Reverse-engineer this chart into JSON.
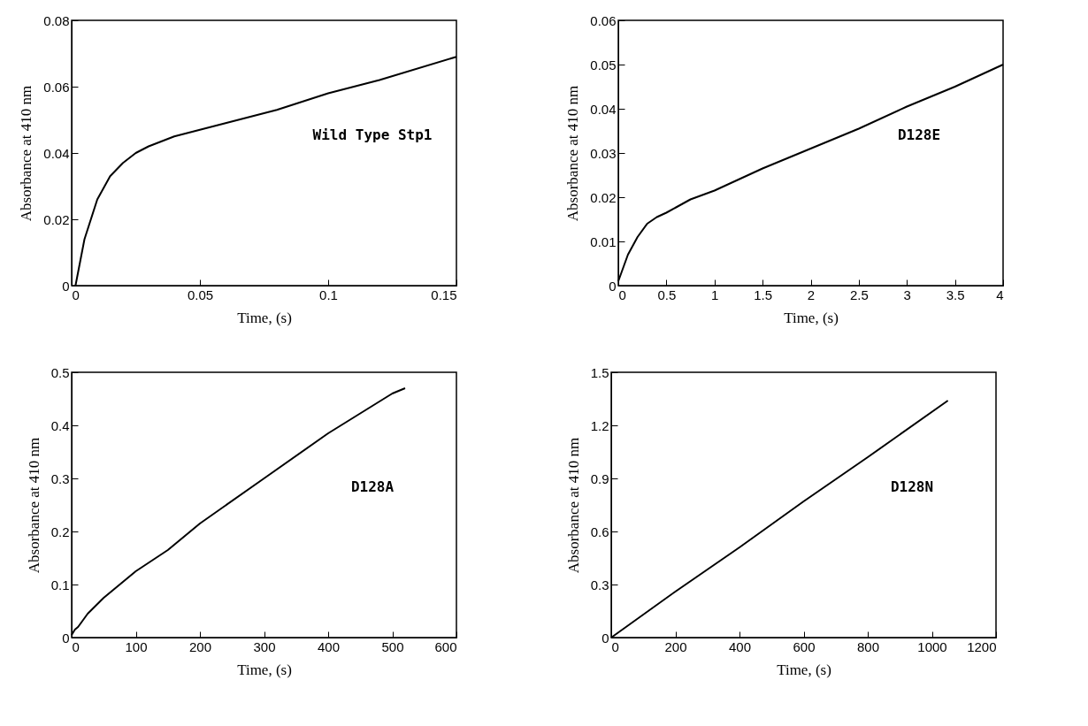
{
  "chart_data": [
    {
      "type": "line",
      "xlabel": "Time, (s)",
      "ylabel": "Absorbance at 410 nm",
      "annotations": [
        "Wild Type Stp1"
      ],
      "xlim": [
        0,
        0.15
      ],
      "xticks": [
        0,
        0.05,
        0.1,
        0.15
      ],
      "ylim": [
        0,
        0.08
      ],
      "yticks": [
        0,
        0.02,
        0.04,
        0.06,
        0.08
      ],
      "grid": false,
      "series": [
        {
          "color": "#000000",
          "x": [
            0.0015,
            0.005,
            0.01,
            0.015,
            0.02,
            0.025,
            0.03,
            0.04,
            0.05,
            0.06,
            0.08,
            0.1,
            0.12,
            0.15
          ],
          "values": [
            0,
            0.014,
            0.026,
            0.033,
            0.037,
            0.04,
            0.042,
            0.045,
            0.047,
            0.049,
            0.053,
            0.058,
            0.062,
            0.069
          ]
        }
      ]
    },
    {
      "type": "line",
      "xlabel": "Time, (s)",
      "ylabel": "Absorbance at 410 nm",
      "annotations": [
        "D128E"
      ],
      "xlim": [
        0,
        4
      ],
      "xticks": [
        0,
        0.5,
        1,
        1.5,
        2,
        2.5,
        3,
        3.5,
        4
      ],
      "ylim": [
        0,
        0.06
      ],
      "yticks": [
        0,
        0.01,
        0.02,
        0.03,
        0.04,
        0.05,
        0.06
      ],
      "grid": false,
      "series": [
        {
          "color": "#000000",
          "x": [
            0,
            0.05,
            0.1,
            0.2,
            0.3,
            0.4,
            0.5,
            0.75,
            1,
            1.5,
            2,
            2.5,
            3,
            3.5,
            4
          ],
          "values": [
            0.001,
            0.004,
            0.007,
            0.011,
            0.014,
            0.0155,
            0.0165,
            0.0195,
            0.0215,
            0.0265,
            0.031,
            0.0355,
            0.0405,
            0.045,
            0.05
          ]
        }
      ]
    },
    {
      "type": "line",
      "xlabel": "Time, (s)",
      "ylabel": "Absorbance at 410 nm",
      "annotations": [
        "D128A"
      ],
      "xlim": [
        0,
        600
      ],
      "xticks": [
        0,
        100,
        200,
        300,
        400,
        500,
        600
      ],
      "ylim": [
        0,
        0.5
      ],
      "yticks": [
        0,
        0.1,
        0.2,
        0.3,
        0.4,
        0.5
      ],
      "grid": false,
      "series": [
        {
          "color": "#000000",
          "x": [
            0,
            5,
            10,
            25,
            50,
            75,
            100,
            150,
            200,
            300,
            400,
            500,
            520
          ],
          "values": [
            0.005,
            0.015,
            0.02,
            0.045,
            0.075,
            0.1,
            0.125,
            0.165,
            0.215,
            0.3,
            0.385,
            0.46,
            0.47
          ]
        }
      ]
    },
    {
      "type": "line",
      "xlabel": "Time, (s)",
      "ylabel": "Absorbance at 410 nm",
      "annotations": [
        "D128N"
      ],
      "xlim": [
        0,
        1200
      ],
      "xticks": [
        0,
        200,
        400,
        600,
        800,
        1000,
        1200
      ],
      "ylim": [
        0,
        1.5
      ],
      "yticks": [
        0,
        0.3,
        0.6,
        0.9,
        1.2,
        1.5
      ],
      "grid": false,
      "series": [
        {
          "color": "#000000",
          "x": [
            0,
            200,
            400,
            600,
            800,
            1050
          ],
          "values": [
            0,
            0.26,
            0.51,
            0.77,
            1.02,
            1.34
          ]
        }
      ]
    }
  ]
}
